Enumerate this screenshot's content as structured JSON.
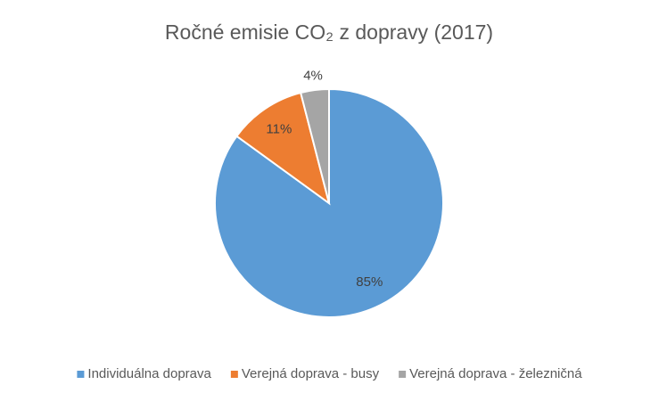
{
  "chart_data": {
    "type": "pie",
    "title": "Ročné emisie CO₂ z dopravy (2017)",
    "categories": [
      "Individuálna doprava",
      "Verejná doprava - busy",
      "Verejná doprava - železničná"
    ],
    "values": [
      85,
      11,
      4
    ],
    "value_labels": [
      "85%",
      "11%",
      "4%"
    ],
    "colors": [
      "#5b9bd5",
      "#ed7d31",
      "#a5a5a5"
    ],
    "legend": "bottom"
  }
}
